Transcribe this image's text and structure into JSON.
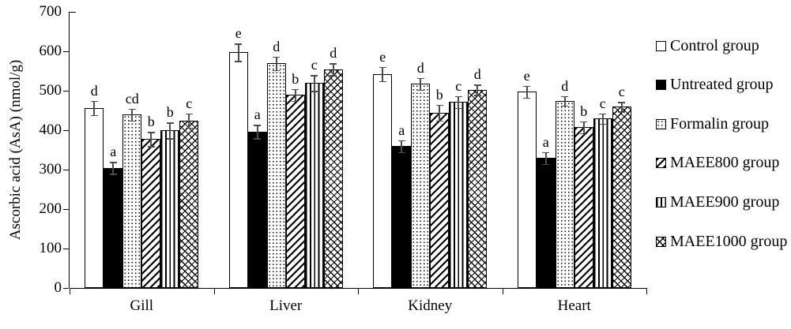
{
  "chart_data": {
    "type": "bar",
    "title": "",
    "xlabel": "",
    "ylabel": "Ascorbic acid (AsA) (nmol/g)",
    "ylim": [
      0,
      700
    ],
    "yticks": [
      0,
      100,
      200,
      300,
      400,
      500,
      600,
      700
    ],
    "grid": false,
    "legend_position": "right",
    "categories": [
      "Gill",
      "Liver",
      "Kidney",
      "Heart"
    ],
    "series": [
      {
        "name": "Control group",
        "fill": "open",
        "values": [
          457,
          598,
          543,
          498
        ],
        "errors": [
          18,
          22,
          18,
          15
        ],
        "letters": [
          "d",
          "e",
          "e",
          "e"
        ]
      },
      {
        "name": "Untreated group",
        "fill": "solid",
        "values": [
          305,
          397,
          360,
          330
        ],
        "errors": [
          15,
          17,
          15,
          15
        ],
        "letters": [
          "a",
          "a",
          "a",
          "a"
        ]
      },
      {
        "name": "Formalin group",
        "fill": "dots",
        "values": [
          440,
          570,
          518,
          475
        ],
        "errors": [
          15,
          17,
          15,
          12
        ],
        "letters": [
          "cd",
          "d",
          "d",
          "d"
        ]
      },
      {
        "name": "MAEE800 group",
        "fill": "diag",
        "values": [
          378,
          490,
          445,
          408
        ],
        "errors": [
          18,
          15,
          20,
          15
        ],
        "letters": [
          "b",
          "b",
          "b",
          "b"
        ]
      },
      {
        "name": "MAEE900 group",
        "fill": "vert",
        "values": [
          400,
          520,
          472,
          430
        ],
        "errors": [
          20,
          20,
          15,
          13
        ],
        "letters": [
          "b",
          "c",
          "c",
          "c"
        ]
      },
      {
        "name": "MAEE1000 group",
        "fill": "cross",
        "values": [
          425,
          555,
          503,
          460
        ],
        "errors": [
          18,
          15,
          13,
          12
        ],
        "letters": [
          "c",
          "d",
          "d",
          "c"
        ]
      }
    ]
  }
}
